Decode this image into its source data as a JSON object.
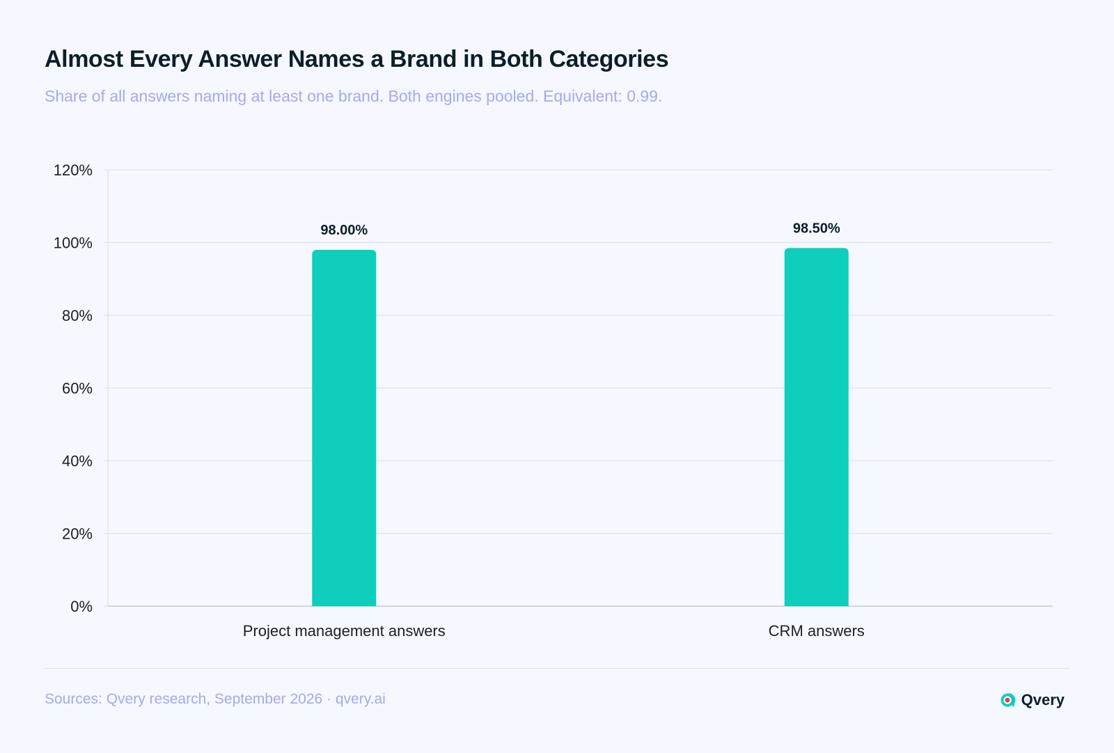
{
  "header": {
    "title": "Almost Every Answer Names a Brand in Both Categories",
    "subtitle": "Share of all answers naming at least one brand. Both engines pooled. Equivalent: 0.99."
  },
  "chart_data": {
    "type": "bar",
    "title": "Almost Every Answer Names a Brand in Both Categories",
    "subtitle": "Share of all answers naming at least one brand. Both engines pooled. Equivalent: 0.99.",
    "categories": [
      "Project management answers",
      "CRM answers"
    ],
    "values": [
      98.0,
      98.5
    ],
    "data_labels": [
      "98.00%",
      "98.50%"
    ],
    "ylim": [
      0,
      120
    ],
    "yticks": [
      0,
      20,
      40,
      60,
      80,
      100,
      120
    ],
    "ytick_labels": [
      "0%",
      "20%",
      "40%",
      "60%",
      "80%",
      "100%",
      "120%"
    ],
    "xlabel": "",
    "ylabel": "",
    "grid": true,
    "bar_color": "#0dcfbc"
  },
  "footer": {
    "sources": "Sources: Qvery research, September 2026 · qvery.ai",
    "brand_name": "Qvery",
    "brand_logo_icon": "qvery-logo-icon"
  },
  "colors": {
    "background": "#f5f8fe",
    "title": "#0d1e2a",
    "subtitle": "#a6a9ec",
    "bar": "#0dcfbc",
    "grid": "#dde1ec",
    "axis": "#c4c8d2",
    "brand_accent": "#e8384f"
  }
}
